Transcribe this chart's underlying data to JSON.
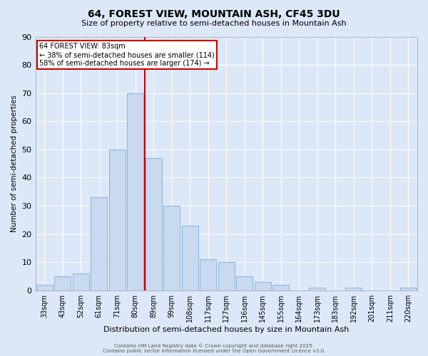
{
  "title": "64, FOREST VIEW, MOUNTAIN ASH, CF45 3DU",
  "subtitle": "Size of property relative to semi-detached houses in Mountain Ash",
  "xlabel": "Distribution of semi-detached houses by size in Mountain Ash",
  "ylabel": "Number of semi-detached properties",
  "bar_labels": [
    "33sqm",
    "43sqm",
    "52sqm",
    "61sqm",
    "71sqm",
    "80sqm",
    "89sqm",
    "99sqm",
    "108sqm",
    "117sqm",
    "127sqm",
    "136sqm",
    "145sqm",
    "155sqm",
    "164sqm",
    "173sqm",
    "183sqm",
    "192sqm",
    "201sqm",
    "211sqm",
    "220sqm"
  ],
  "bar_heights": [
    2,
    5,
    6,
    33,
    50,
    70,
    47,
    30,
    23,
    11,
    10,
    5,
    3,
    2,
    0,
    1,
    0,
    1,
    0,
    0,
    1
  ],
  "bar_color": "#c8d9f0",
  "bar_edge_color": "#8ab4d8",
  "background_color": "#dce8f8",
  "grid_color": "#ffffff",
  "vline_x": 5.5,
  "vline_color": "#cc0000",
  "annotation_title": "64 FOREST VIEW: 83sqm",
  "annotation_line1": "← 38% of semi-detached houses are smaller (114)",
  "annotation_line2": "58% of semi-detached houses are larger (174) →",
  "annotation_box_color": "#ffffff",
  "annotation_box_edge": "#cc0000",
  "ylim": [
    0,
    90
  ],
  "yticks": [
    0,
    10,
    20,
    30,
    40,
    50,
    60,
    70,
    80,
    90
  ],
  "footnote1": "Contains HM Land Registry data © Crown copyright and database right 2025.",
  "footnote2": "Contains public sector information licensed under the Open Government Licence v3.0."
}
